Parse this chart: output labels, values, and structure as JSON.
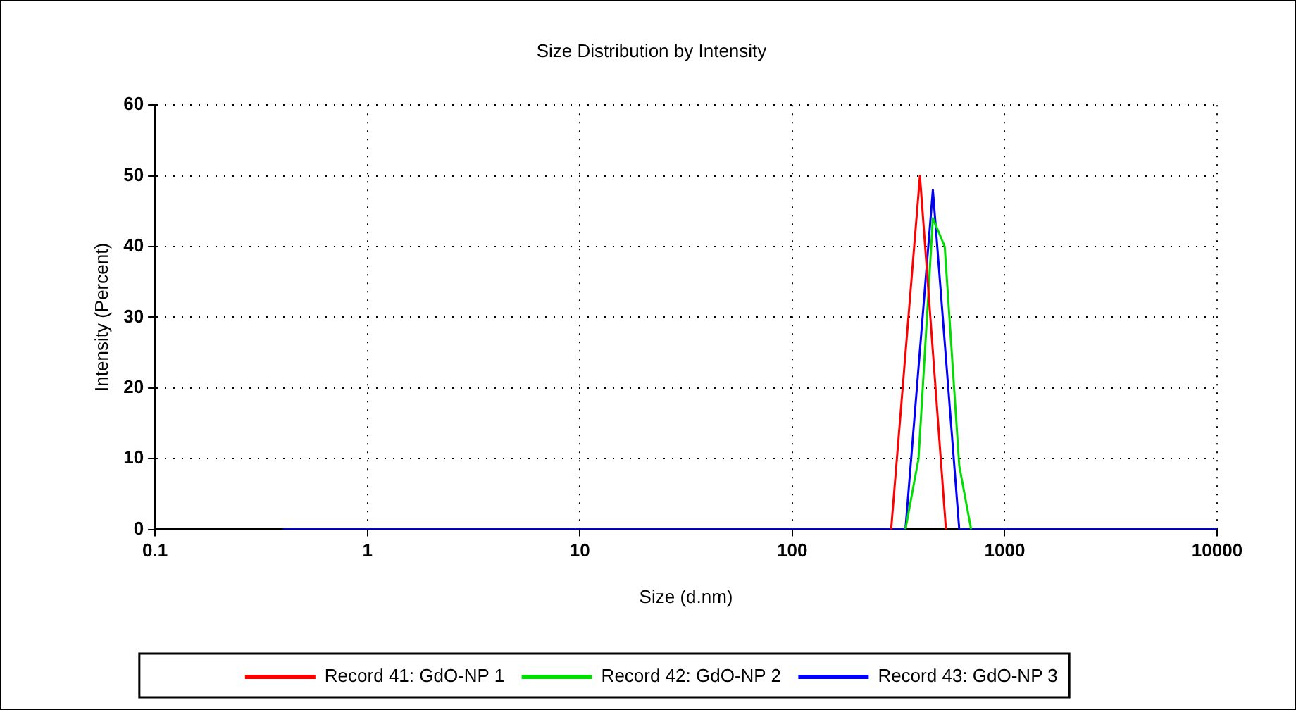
{
  "chart_data": {
    "type": "line",
    "title": "Size Distribution by Intensity",
    "xlabel": "Size (d.nm)",
    "ylabel": "Intensity (Percent)",
    "log": "x",
    "xlim": [
      0.1,
      10000
    ],
    "xticks": [
      0.1,
      1,
      10,
      100,
      1000,
      10000
    ],
    "ylim": [
      0,
      60
    ],
    "yticks": [
      0,
      10,
      20,
      30,
      40,
      50,
      60
    ],
    "grid": true,
    "legend": "bottom",
    "marker": "none",
    "line_style": "solid",
    "series": [
      {
        "name": "Record 41: GdO-NP 1",
        "color": "#ff0000",
        "x": [
          292,
          399,
          529
        ],
        "values": [
          0,
          50,
          0
        ]
      },
      {
        "name": "Record 42: GdO-NP 2",
        "color": "#00dd00",
        "x": [
          341,
          393,
          459,
          522,
          611,
          695
        ],
        "values": [
          0,
          10,
          44,
          40,
          9,
          0
        ]
      },
      {
        "name": "Record 43: GdO-NP 3",
        "color": "#0000ff",
        "x": [
          0.4,
          341,
          459,
          611,
          10000
        ],
        "values": [
          0,
          0,
          48,
          0,
          0
        ]
      }
    ]
  }
}
